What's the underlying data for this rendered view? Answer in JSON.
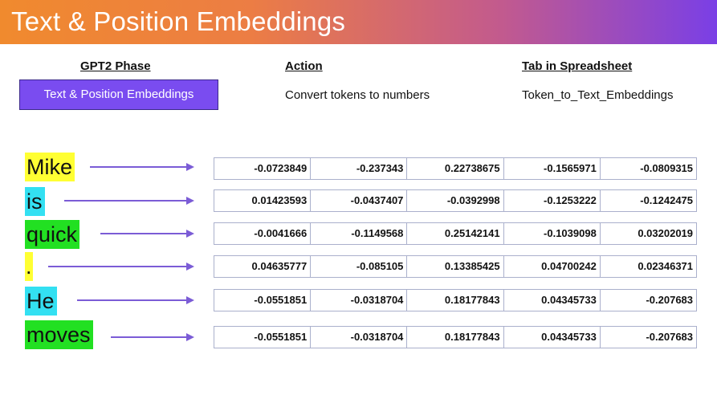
{
  "title": "Text & Position Embeddings",
  "headers": {
    "phase": "GPT2 Phase",
    "action": "Action",
    "tab": "Tab in Spreadsheet"
  },
  "phase_value": "Text & Position Embeddings",
  "action_value": "Convert tokens to numbers",
  "tab_value": "Token_to_Text_Embeddings",
  "rows": [
    {
      "token": "Mike",
      "color": "#ffff33",
      "values": [
        "-0.0723849",
        "-0.237343",
        "0.22738675",
        "-0.1565971",
        "-0.0809315"
      ]
    },
    {
      "token": "is",
      "color": "#33e0f2",
      "values": [
        "0.01423593",
        "-0.0437407",
        "-0.0392998",
        "-0.1253222",
        "-0.1242475"
      ]
    },
    {
      "token": "quick",
      "color": "#22e022",
      "values": [
        "-0.0041666",
        "-0.1149568",
        "0.25142141",
        "-0.1039098",
        "0.03202019"
      ]
    },
    {
      "token": ".",
      "color": "#ffff33",
      "values": [
        "0.04635777",
        "-0.085105",
        "0.13385425",
        "0.04700242",
        "0.02346371"
      ]
    },
    {
      "token": "He",
      "color": "#33e0f2",
      "values": [
        "-0.0551851",
        "-0.0318704",
        "0.18177843",
        "0.04345733",
        "-0.207683"
      ]
    },
    {
      "token": "moves",
      "color": "#22e022",
      "values": [
        "-0.0551851",
        "-0.0318704",
        "0.18177843",
        "0.04345733",
        "-0.207683"
      ]
    }
  ]
}
